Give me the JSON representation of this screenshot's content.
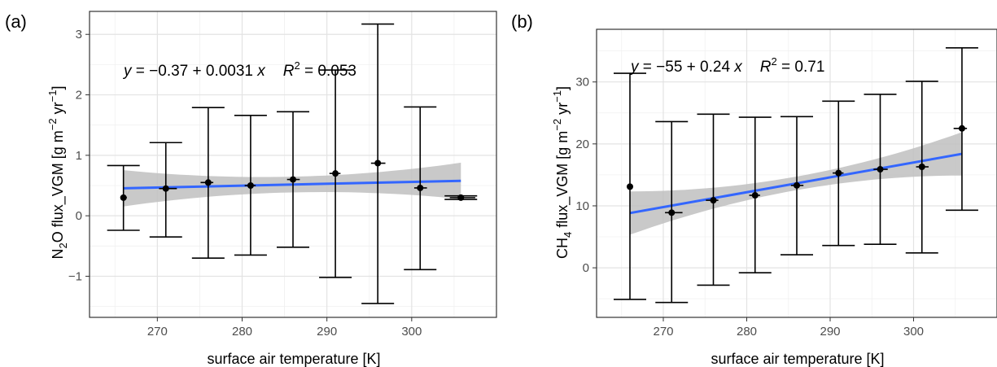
{
  "chart_data": [
    {
      "type": "scatter",
      "panel_label": "(a)",
      "title": "",
      "xlabel": "surface air temperature [K]",
      "ylabel": {
        "prefix": "N",
        "sub": "2",
        "mid": "O flux_VGM [g m",
        "sup1": "−2",
        "mid2": " yr",
        "sup2": "−1",
        "suffix": "]"
      },
      "xlim": [
        262,
        310
      ],
      "ylim": [
        -1.68,
        3.38
      ],
      "xticks": [
        270,
        280,
        290,
        300
      ],
      "yticks": [
        -1,
        0,
        1,
        2,
        3
      ],
      "grid": true,
      "points": [
        {
          "x": 266,
          "y": 0.3,
          "ylo": -0.24,
          "yhi": 0.83,
          "xlo": 265.8,
          "xhi": 266.4
        },
        {
          "x": 271,
          "y": 0.45,
          "ylo": -0.35,
          "yhi": 1.21,
          "xlo": 270.2,
          "xhi": 272.3
        },
        {
          "x": 276,
          "y": 0.55,
          "ylo": -0.7,
          "yhi": 1.79,
          "xlo": 275.1,
          "xhi": 276.6
        },
        {
          "x": 281,
          "y": 0.5,
          "ylo": -0.65,
          "yhi": 1.66,
          "xlo": 280.3,
          "xhi": 281.6
        },
        {
          "x": 286,
          "y": 0.6,
          "ylo": -0.52,
          "yhi": 1.72,
          "xlo": 285.3,
          "xhi": 286.8
        },
        {
          "x": 291,
          "y": 0.7,
          "ylo": -1.02,
          "yhi": 2.41,
          "xlo": 290.3,
          "xhi": 291.6
        },
        {
          "x": 296,
          "y": 0.87,
          "ylo": -1.45,
          "yhi": 3.17,
          "xlo": 295.2,
          "xhi": 296.9
        },
        {
          "x": 301,
          "y": 0.46,
          "ylo": -0.89,
          "yhi": 1.8,
          "xlo": 300.3,
          "xhi": 301.8
        },
        {
          "x": 305.8,
          "y": 0.3,
          "ylo": 0.27,
          "yhi": 0.33,
          "xlo": 304.5,
          "xhi": 307.5
        }
      ],
      "fit": {
        "x0": 266,
        "x1": 305.8,
        "intercept": -0.37,
        "slope": 0.0031,
        "ci_halfwidth": [
          0.3,
          0.13,
          0.3
        ]
      },
      "equation": {
        "lhs": "y",
        "rhs": " = −0.37 + 0.0031 ",
        "var": "x",
        "r": "R",
        "r_sup": "2",
        "r_val": " = 0.053"
      },
      "colors": {
        "line": "#3366ff",
        "ribbon": "#bfbfbf",
        "point": "#000000"
      }
    },
    {
      "type": "scatter",
      "panel_label": "(b)",
      "title": "",
      "xlabel": "surface air temperature [K]",
      "ylabel": {
        "prefix": "CH",
        "sub": "4",
        "mid": " flux_VGM [g m",
        "sup1": "−2",
        "mid2": " yr",
        "sup2": "−1",
        "suffix": "]"
      },
      "xlim": [
        262,
        310
      ],
      "ylim": [
        -8,
        38.5
      ],
      "xticks": [
        270,
        280,
        290,
        300
      ],
      "yticks": [
        0,
        10,
        20,
        30
      ],
      "grid": true,
      "points": [
        {
          "x": 266,
          "y": 13.1,
          "ylo": -5.1,
          "yhi": 31.4,
          "xlo": 265.9,
          "xhi": 266.3
        },
        {
          "x": 271,
          "y": 8.9,
          "ylo": -5.6,
          "yhi": 23.6,
          "xlo": 270.2,
          "xhi": 272.3
        },
        {
          "x": 276,
          "y": 10.9,
          "ylo": -2.8,
          "yhi": 24.8,
          "xlo": 275.1,
          "xhi": 276.6
        },
        {
          "x": 281,
          "y": 11.7,
          "ylo": -0.8,
          "yhi": 24.3,
          "xlo": 280.3,
          "xhi": 281.6
        },
        {
          "x": 286,
          "y": 13.3,
          "ylo": 2.1,
          "yhi": 24.4,
          "xlo": 285.3,
          "xhi": 286.8
        },
        {
          "x": 291,
          "y": 15.3,
          "ylo": 3.6,
          "yhi": 26.9,
          "xlo": 290.3,
          "xhi": 291.6
        },
        {
          "x": 296,
          "y": 15.9,
          "ylo": 3.8,
          "yhi": 28.0,
          "xlo": 295.2,
          "xhi": 296.9
        },
        {
          "x": 301,
          "y": 16.3,
          "ylo": 2.4,
          "yhi": 30.1,
          "xlo": 300.3,
          "xhi": 301.8
        },
        {
          "x": 305.8,
          "y": 22.5,
          "ylo": 9.3,
          "yhi": 35.5,
          "xlo": 304.8,
          "xhi": 306.4
        }
      ],
      "fit": {
        "x0": 266,
        "x1": 305.8,
        "intercept": -55,
        "slope": 0.24,
        "ci_halfwidth": [
          3.5,
          1.1,
          3.5
        ]
      },
      "equation": {
        "lhs": "y",
        "rhs": " = −55 + 0.24 ",
        "var": "x",
        "r": "R",
        "r_sup": "2",
        "r_val": " = 0.71"
      },
      "colors": {
        "line": "#3366ff",
        "ribbon": "#bfbfbf",
        "point": "#000000"
      }
    }
  ]
}
